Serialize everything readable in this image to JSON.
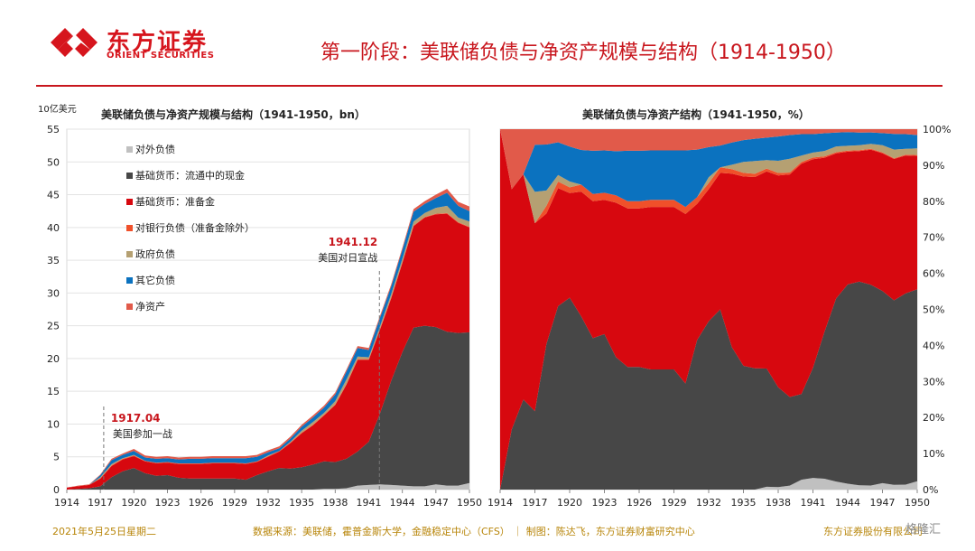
{
  "header": {
    "brand_cn": "东方证券",
    "brand_en": "ORIENT SECURITIES",
    "slide_title": "第一阶段：美联储负债与净资产规模与结构（1914-1950）"
  },
  "footer": {
    "date": "2021年5月25日星期二",
    "source": "数据来源：美联储，霍普金斯大学，金融稳定中心（CFS） ｜ 制图：陈达飞，东方证券财富研究中心",
    "company": "东方证券股份有限公司",
    "watermark": "格隆汇"
  },
  "colors": {
    "brand_red": "#c8161d",
    "series": [
      "#c0c0c0",
      "#474747",
      "#d7080f",
      "#f0502a",
      "#b5a072",
      "#0b72bf",
      "#e15a4a"
    ]
  },
  "chart_data": [
    {
      "type": "area",
      "stacked": true,
      "title": "美联储负债与净资产规模与结构（1941-1950，bn）",
      "ylabel": "10亿美元",
      "xlabel": "",
      "x": [
        1914,
        1915,
        1916,
        1917,
        1918,
        1919,
        1920,
        1921,
        1922,
        1923,
        1924,
        1925,
        1926,
        1927,
        1928,
        1929,
        1930,
        1931,
        1932,
        1933,
        1934,
        1935,
        1936,
        1937,
        1938,
        1939,
        1940,
        1941,
        1942,
        1943,
        1944,
        1945,
        1946,
        1947,
        1948,
        1949,
        1950
      ],
      "x_ticks": [
        "1914",
        "1917",
        "1920",
        "1923",
        "1926",
        "1929",
        "1932",
        "1935",
        "1938",
        "1941",
        "1944",
        "1947",
        "1950"
      ],
      "ylim": [
        0,
        55
      ],
      "y_ticks": [
        "0",
        "5",
        "10",
        "15",
        "20",
        "25",
        "30",
        "35",
        "40",
        "45",
        "50",
        "55"
      ],
      "legend_position": "top-left",
      "series": [
        {
          "name": "对外负债",
          "values": [
            0.0,
            0.0,
            0.0,
            0.0,
            0.0,
            0.0,
            0.0,
            0.0,
            0.0,
            0.0,
            0.0,
            0.0,
            0.0,
            0.0,
            0.0,
            0.0,
            0.0,
            0.0,
            0.0,
            0.0,
            0.0,
            0.0,
            0.0,
            0.1,
            0.1,
            0.2,
            0.6,
            0.7,
            0.8,
            0.7,
            0.6,
            0.5,
            0.5,
            0.8,
            0.6,
            0.6,
            1.0
          ]
        },
        {
          "name": "基础货币：流通中的现金",
          "values": [
            0.0,
            0.1,
            0.2,
            0.5,
            1.9,
            2.8,
            3.3,
            2.5,
            2.1,
            2.2,
            1.8,
            1.7,
            1.7,
            1.7,
            1.7,
            1.7,
            1.5,
            2.2,
            2.8,
            3.3,
            3.2,
            3.4,
            3.8,
            4.2,
            4.1,
            4.5,
            5.2,
            6.6,
            10.8,
            15.9,
            20.4,
            24.2,
            24.5,
            24.0,
            23.5,
            23.3,
            23.0
          ]
        },
        {
          "name": "基础货币：准备金",
          "values": [
            0.3,
            0.4,
            0.5,
            1.2,
            1.7,
            1.8,
            1.8,
            1.8,
            1.9,
            1.9,
            2.1,
            2.2,
            2.2,
            2.3,
            2.3,
            2.3,
            2.4,
            2.0,
            2.2,
            2.5,
            3.9,
            5.2,
            6.0,
            7.0,
            8.7,
            11.3,
            14.0,
            12.5,
            12.8,
            12.6,
            13.6,
            15.5,
            16.5,
            17.2,
            18.0,
            16.8,
            16.0
          ]
        },
        {
          "name": "对银行负债（准备金除外）",
          "values": [
            0.0,
            0.0,
            0.0,
            0.0,
            0.1,
            0.1,
            0.1,
            0.1,
            0.1,
            0.1,
            0.1,
            0.1,
            0.1,
            0.1,
            0.1,
            0.1,
            0.1,
            0.1,
            0.1,
            0.1,
            0.1,
            0.1,
            0.1,
            0.1,
            0.1,
            0.1,
            0.1,
            0.1,
            0.1,
            0.1,
            0.1,
            0.1,
            0.1,
            0.1,
            0.1,
            0.1,
            0.1
          ]
        },
        {
          "name": "政府负债",
          "values": [
            0.0,
            0.0,
            0.0,
            0.2,
            0.2,
            0.1,
            0.1,
            0.0,
            0.0,
            0.0,
            0.0,
            0.0,
            0.0,
            0.0,
            0.0,
            0.0,
            0.0,
            0.0,
            0.1,
            0.0,
            0.1,
            0.3,
            0.4,
            0.3,
            0.5,
            0.7,
            0.4,
            0.3,
            0.4,
            0.5,
            0.5,
            0.6,
            0.6,
            0.9,
            1.1,
            0.7,
            0.8
          ]
        },
        {
          "name": "其它负债",
          "values": [
            0.0,
            0.0,
            0.0,
            0.3,
            0.6,
            0.5,
            0.6,
            0.5,
            0.6,
            0.6,
            0.6,
            0.7,
            0.7,
            0.7,
            0.7,
            0.7,
            0.8,
            0.7,
            0.5,
            0.4,
            0.5,
            0.6,
            0.7,
            0.8,
            1.0,
            1.2,
            1.3,
            1.1,
            1.3,
            1.2,
            1.4,
            1.5,
            1.4,
            1.5,
            2.0,
            1.8,
            1.6
          ]
        },
        {
          "name": "净资产",
          "values": [
            0.0,
            0.1,
            0.1,
            0.1,
            0.2,
            0.2,
            0.3,
            0.3,
            0.3,
            0.3,
            0.3,
            0.3,
            0.3,
            0.3,
            0.3,
            0.3,
            0.3,
            0.3,
            0.3,
            0.3,
            0.3,
            0.3,
            0.3,
            0.3,
            0.3,
            0.3,
            0.3,
            0.3,
            0.3,
            0.3,
            0.3,
            0.4,
            0.4,
            0.5,
            0.6,
            0.6,
            0.7
          ]
        }
      ],
      "annotations": [
        {
          "x": 1917.3,
          "date": "1917.04",
          "text": "美国参加一战"
        },
        {
          "x": 1941.95,
          "date": "1941.12",
          "text": "美国对日宣战"
        }
      ]
    },
    {
      "type": "area",
      "stacked": true,
      "normalized": true,
      "title": "美联储负债与净资产结构（1941-1950，%）",
      "x": [
        1914,
        1915,
        1916,
        1917,
        1918,
        1919,
        1920,
        1921,
        1922,
        1923,
        1924,
        1925,
        1926,
        1927,
        1928,
        1929,
        1930,
        1931,
        1932,
        1933,
        1934,
        1935,
        1936,
        1937,
        1938,
        1939,
        1940,
        1941,
        1942,
        1943,
        1944,
        1945,
        1946,
        1947,
        1948,
        1949,
        1950
      ],
      "x_ticks": [
        "1914",
        "1917",
        "1920",
        "1923",
        "1926",
        "1929",
        "1932",
        "1935",
        "1938",
        "1941",
        "1944",
        "1947",
        "1950"
      ],
      "ylim": [
        0,
        100
      ],
      "y_ticks": [
        "0%",
        "10%",
        "20%",
        "30%",
        "40%",
        "50%",
        "60%",
        "70%",
        "80%",
        "90%",
        "100%"
      ],
      "series_ref": "same series as chart 1, expressed as share of total"
    }
  ]
}
